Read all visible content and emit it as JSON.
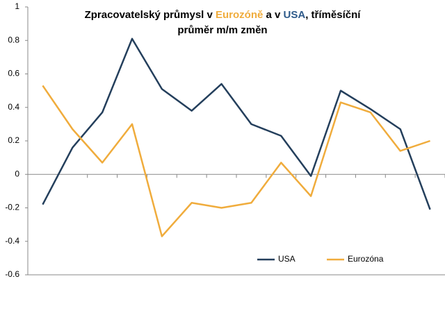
{
  "chart_data": {
    "type": "line",
    "title_lines": [
      [
        {
          "text": "Zpracovatelský průmysl v ",
          "color": "#000000"
        },
        {
          "text": "Eurozóně",
          "color": "#f0ac3c"
        },
        {
          "text": " a v ",
          "color": "#000000"
        },
        {
          "text": "USA",
          "color": "#2e5a8a"
        },
        {
          "text": ", tříměsíční",
          "color": "#000000"
        }
      ],
      [
        {
          "text": "průměr m/m změn",
          "color": "#000000"
        }
      ]
    ],
    "categories": [
      null,
      null,
      null,
      null,
      null,
      null,
      null,
      null,
      null,
      null,
      null,
      null,
      null,
      null
    ],
    "series": [
      {
        "name": "USA",
        "color": "#243f5c",
        "values": [
          -0.18,
          0.16,
          0.37,
          0.81,
          0.51,
          0.38,
          0.54,
          0.3,
          0.23,
          -0.01,
          0.5,
          0.39,
          0.27,
          -0.21
        ]
      },
      {
        "name": "Eurozóna",
        "color": "#f0ac3c",
        "values": [
          0.53,
          0.27,
          0.07,
          0.3,
          -0.37,
          -0.17,
          -0.2,
          -0.17,
          0.07,
          -0.13,
          0.43,
          0.37,
          0.14,
          0.2
        ]
      }
    ],
    "ylim": [
      -0.6,
      1
    ],
    "yticks": [
      -0.6,
      -0.4,
      -0.2,
      0,
      0.2,
      0.4,
      0.6,
      0.8,
      1
    ],
    "grid": false
  }
}
